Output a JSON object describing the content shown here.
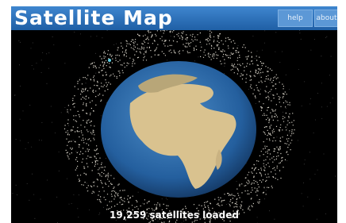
{
  "header": {
    "title": "Satellite Map",
    "buttons": [
      "help",
      "about"
    ]
  },
  "status": "19,259 satellites loaded"
}
